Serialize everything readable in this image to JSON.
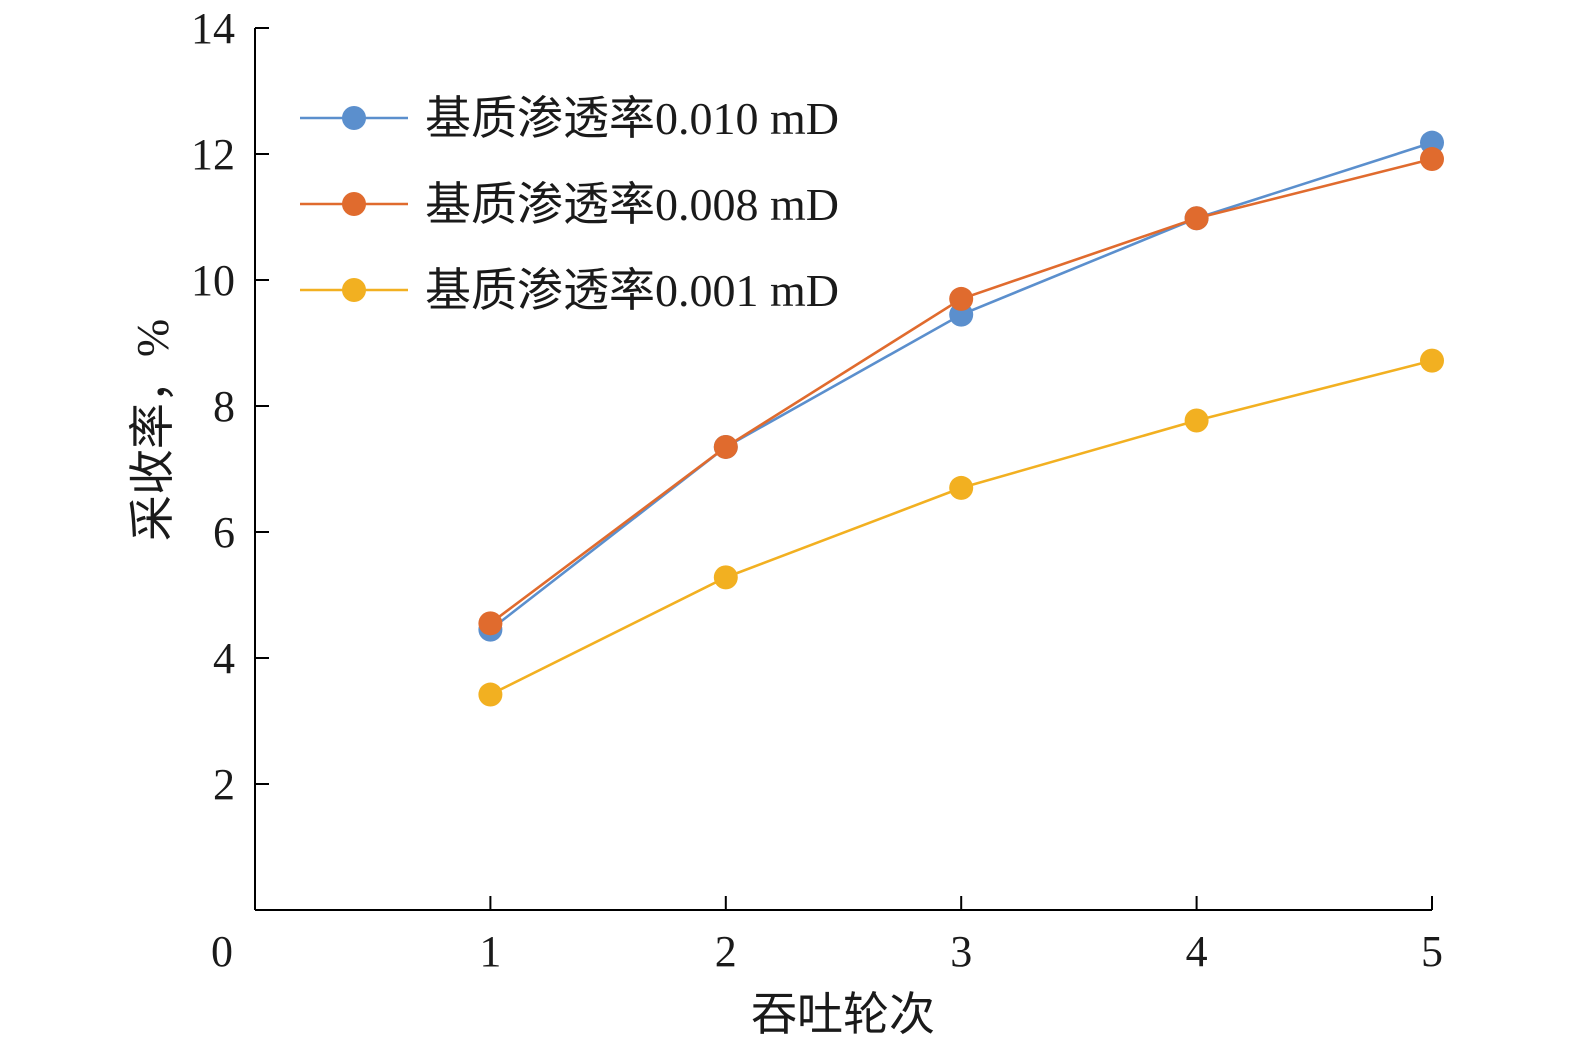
{
  "chart_data": {
    "type": "line",
    "xlabel": "吞吐轮次",
    "ylabel": "采收率，%",
    "xlim": [
      0,
      5
    ],
    "ylim": [
      0,
      14
    ],
    "x_ticks": [
      0,
      1,
      2,
      3,
      4,
      5
    ],
    "y_ticks": [
      2,
      4,
      6,
      8,
      10,
      12,
      14
    ],
    "x_tick_labels": [
      "0",
      "1",
      "2",
      "3",
      "4",
      "5"
    ],
    "y_tick_labels": [
      "2",
      "4",
      "6",
      "8",
      "10",
      "12",
      "14"
    ],
    "grid": false,
    "legend_position": "top-left",
    "x": [
      1,
      2,
      3,
      4,
      5
    ],
    "series": [
      {
        "name": "基质渗透率0.010 mD",
        "color": "#5b8fcd",
        "values": [
          4.45,
          7.35,
          9.45,
          10.98,
          12.18
        ]
      },
      {
        "name": "基质渗透率0.008 mD",
        "color": "#e06b2e",
        "values": [
          4.55,
          7.35,
          9.7,
          10.98,
          11.92
        ]
      },
      {
        "name": "基质渗透率0.001 mD",
        "color": "#f2b021",
        "values": [
          3.42,
          5.28,
          6.7,
          7.77,
          8.72
        ]
      }
    ]
  }
}
